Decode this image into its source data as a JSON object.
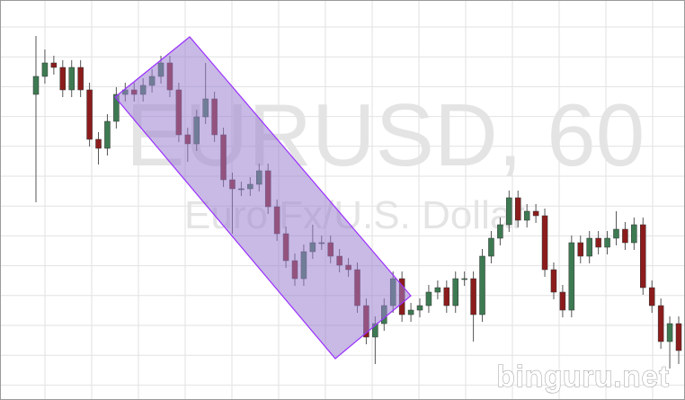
{
  "watermark": {
    "symbol": "EURUSD, 60",
    "description": "Euro Fx/U.S. Dollar"
  },
  "credit": "binguru.net",
  "chart_data": {
    "type": "candlestick",
    "open": [
      340,
      360,
      375,
      370,
      345,
      370,
      345,
      290,
      280,
      310,
      340,
      345,
      340,
      350,
      360,
      375,
      345,
      295,
      285,
      315,
      335,
      295,
      245,
      235,
      235,
      240,
      255,
      215,
      185,
      155,
      135,
      165,
      175,
      175,
      160,
      150,
      145,
      105,
      70,
      85,
      105,
      135,
      95,
      100,
      105,
      120,
      125,
      105,
      135,
      135,
      95,
      160,
      180,
      195,
      225,
      200,
      210,
      205,
      145,
      120,
      100,
      175,
      160,
      180,
      170,
      180,
      190,
      175,
      195,
      125,
      105,
      65,
      85
    ],
    "high": [
      405,
      390,
      383,
      378,
      378,
      378,
      353,
      298,
      318,
      348,
      353,
      353,
      358,
      368,
      383,
      383,
      353,
      303,
      323,
      375,
      343,
      303,
      253,
      243,
      248,
      263,
      263,
      223,
      193,
      163,
      173,
      195,
      183,
      183,
      168,
      158,
      153,
      113,
      93,
      113,
      143,
      143,
      108,
      113,
      128,
      133,
      133,
      143,
      143,
      143,
      168,
      188,
      203,
      233,
      233,
      218,
      218,
      213,
      153,
      128,
      183,
      183,
      188,
      188,
      188,
      210,
      198,
      203,
      203,
      133,
      113,
      93,
      93
    ],
    "low": [
      220,
      352,
      362,
      337,
      337,
      337,
      282,
      262,
      272,
      302,
      332,
      332,
      332,
      342,
      352,
      337,
      287,
      265,
      277,
      307,
      287,
      237,
      185,
      227,
      227,
      232,
      207,
      177,
      147,
      127,
      127,
      157,
      167,
      152,
      142,
      137,
      97,
      62,
      40,
      77,
      97,
      87,
      87,
      92,
      97,
      112,
      97,
      97,
      127,
      65,
      87,
      152,
      172,
      187,
      192,
      192,
      197,
      137,
      112,
      92,
      92,
      152,
      152,
      162,
      162,
      172,
      167,
      167,
      117,
      97,
      57,
      35,
      40
    ],
    "close": [
      360,
      375,
      370,
      345,
      370,
      345,
      290,
      280,
      310,
      340,
      345,
      340,
      350,
      360,
      375,
      345,
      295,
      285,
      315,
      335,
      295,
      245,
      235,
      235,
      240,
      255,
      215,
      185,
      155,
      135,
      165,
      175,
      175,
      160,
      150,
      145,
      105,
      70,
      85,
      105,
      135,
      95,
      100,
      105,
      120,
      125,
      105,
      135,
      135,
      95,
      160,
      180,
      195,
      225,
      200,
      210,
      205,
      145,
      120,
      100,
      175,
      160,
      180,
      170,
      180,
      190,
      175,
      195,
      125,
      105,
      65,
      85,
      55
    ],
    "up_color": "#3d7a52",
    "down_color": "#8c1c1c",
    "ylim": [
      0,
      445
    ],
    "grid": true
  }
}
